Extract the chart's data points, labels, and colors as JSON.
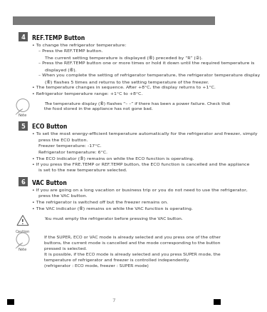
{
  "bg_color": "#ffffff",
  "header_bar_color": "#7a7a7a",
  "page_number": "7",
  "body_text_color": "#333333",
  "title_color": "#111111",
  "note_icon_edge": "#999999",
  "sections": [
    {
      "icon_num": "4",
      "icon_bg": "#5a5a5a",
      "title": "REF.TEMP Button",
      "body_lines": [
        [
          0,
          "• To change the refrigerator temperature:"
        ],
        [
          1,
          "– Press the REF.TEMP button."
        ],
        [
          2,
          "The current setting temperature is displayed (⑥) preceded by “R” (②)."
        ],
        [
          1,
          "– Press the REF.TEMP button one or more times or hold it down until the required temperature is"
        ],
        [
          2,
          "displayed (⑥)."
        ],
        [
          1,
          "– When you complete the setting of refrigerator temperature, the refrigerator temperature display"
        ],
        [
          2,
          "(⑥) flashes 5 times and returns to the setting temperature of the freezer."
        ],
        [
          0,
          "• The temperature changes in sequence. After +8°C, the display returns to +1°C."
        ],
        [
          0,
          "• Refrigerator temperature range: +1°C to +8°C."
        ]
      ],
      "note": "The temperature display (⑥) flashes “– –” if there has been a power failure. Check that\nthe food stored in the appliance has not gone bad."
    },
    {
      "icon_num": "5",
      "icon_bg": "#5a5a5a",
      "title": "ECO Button",
      "body_lines": [
        [
          0,
          "• To set the most energy-efficient temperature automatically for the refrigerator and freezer, simply"
        ],
        [
          1,
          "press the ECO button."
        ],
        [
          1,
          "Freezer temperature: -17°C."
        ],
        [
          1,
          "Refrigerator temperature: 6°C."
        ],
        [
          0,
          "• The ECO indicator (⑤) remains on while the ECO function is operating."
        ],
        [
          0,
          "• If you press the FRE.TEMP or REF.TEMP button, the ECO function is cancelled and the appliance"
        ],
        [
          1,
          "is set to the new temperature selected."
        ]
      ],
      "note": null
    },
    {
      "icon_num": "6",
      "icon_bg": "#5a5a5a",
      "title": "VAC Button",
      "body_lines": [
        [
          0,
          "• If you are going on a long vacation or business trip or you do not need to use the refrigerator,"
        ],
        [
          1,
          "press the VAC button."
        ],
        [
          0,
          "• The refrigerator is switched off but the freezer remains on."
        ],
        [
          0,
          "• The VAC indicator (⑥) remains on while the VAC function is operating."
        ]
      ],
      "caution": "You must empty the refrigerator before pressing the VAC button.",
      "note2": "If the SUPER, ECO or VAC mode is already selected and you press one of the other\nbuttons, the current mode is cancelled and the mode corresponding to the button\npressed is selected.\nIt is possible, if the ECO mode is already selected and you press SUPER mode, the\ntemperature of refrigerator and freezer is controlled independently.\n(refrigerator : ECO mode, freezer : SUPER mode)"
    }
  ]
}
